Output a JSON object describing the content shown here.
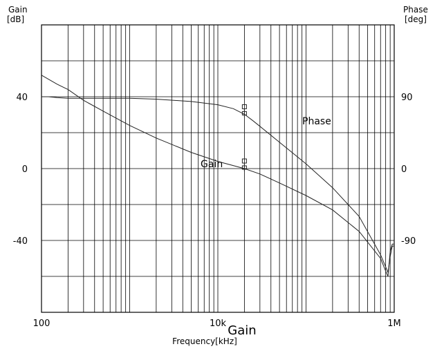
{
  "chart_data": {
    "type": "line",
    "title": "",
    "xlabel": "Frequency[kHz]",
    "left_axis": {
      "title_line1": "Gain",
      "title_line2": "[dB]",
      "ylim": [
        -80,
        80
      ]
    },
    "right_axis": {
      "title_line1": "Phase",
      "title_line2": "[deg]",
      "ylim": [
        -180,
        180
      ]
    },
    "xscale": "log",
    "xlim": [
      100,
      1000000
    ],
    "x_tick_labels": [
      {
        "value": 100,
        "label": "100"
      },
      {
        "value": 10000,
        "label": "10k"
      },
      {
        "value": 1000000,
        "label": "1M"
      }
    ],
    "left_tick_labels": [
      {
        "value": 40,
        "label": "40"
      },
      {
        "value": 0,
        "label": "0"
      },
      {
        "value": -40,
        "label": "-40"
      }
    ],
    "right_tick_labels": [
      {
        "value": 90,
        "label": "90"
      },
      {
        "value": 0,
        "label": "0"
      },
      {
        "value": -90,
        "label": "-90"
      }
    ],
    "left_gridlines": [
      80,
      60,
      40,
      20,
      0,
      -20,
      -40,
      -60,
      -80
    ],
    "grid": true,
    "overlay_text": "Gain",
    "series": [
      {
        "name": "Gain",
        "axis": "left",
        "x": [
          100,
          150,
          200,
          300,
          500,
          1000,
          2000,
          5000,
          10000,
          20000,
          30000,
          50000,
          100000,
          200000,
          400000,
          700000,
          800000,
          850000,
          900000,
          950000,
          1000000
        ],
        "y": [
          52,
          47,
          44,
          38,
          32,
          24,
          17,
          9,
          4,
          0,
          -3,
          -8,
          -15,
          -23,
          -35,
          -50,
          -57,
          -60,
          -46,
          -42,
          -42
        ]
      },
      {
        "name": "Phase",
        "axis": "right",
        "x": [
          100,
          120,
          150,
          200,
          500,
          1000,
          2000,
          5000,
          10000,
          15000,
          20000,
          25000,
          30000,
          50000,
          100000,
          200000,
          400000,
          700000,
          800000,
          850000,
          900000,
          950000,
          1000000
        ],
        "y": [
          90,
          90,
          89,
          88,
          88,
          88,
          87,
          84,
          80,
          75,
          68,
          60,
          53,
          33,
          6,
          -24,
          -60,
          -108,
          -123,
          -130,
          -110,
          -97,
          -97
        ]
      }
    ]
  }
}
